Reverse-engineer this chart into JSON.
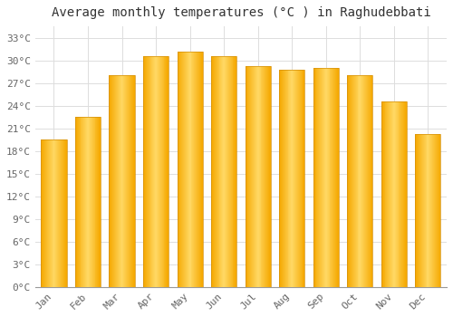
{
  "title": "Average monthly temperatures (°C ) in Raghudebbati",
  "months": [
    "Jan",
    "Feb",
    "Mar",
    "Apr",
    "May",
    "Jun",
    "Jul",
    "Aug",
    "Sep",
    "Oct",
    "Nov",
    "Dec"
  ],
  "values": [
    19.5,
    22.5,
    28.0,
    30.5,
    31.2,
    30.5,
    29.2,
    28.8,
    29.0,
    28.0,
    24.5,
    20.2
  ],
  "bar_color_edge": "#F5A800",
  "bar_color_center": "#FFD966",
  "yticks": [
    0,
    3,
    6,
    9,
    12,
    15,
    18,
    21,
    24,
    27,
    30,
    33
  ],
  "ylim": [
    0,
    34.5
  ],
  "background_color": "#FFFFFF",
  "grid_color": "#DDDDDD",
  "title_fontsize": 10,
  "tick_fontsize": 8,
  "font_family": "monospace",
  "bar_width": 0.75
}
